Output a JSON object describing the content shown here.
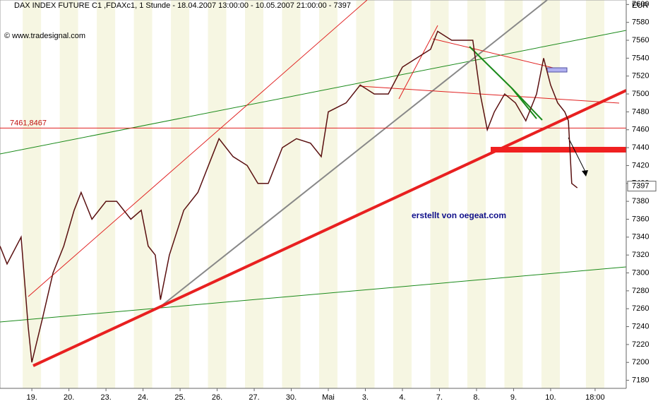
{
  "chart_data": {
    "type": "line",
    "title": "DAX INDEX FUTURE C1 ,FDAXc1, 1 Stunde - 18.04.2007 13:00:00 - 10.05.2007 21:00:00 - 7397",
    "source": "© www.tradesignal.com",
    "annotation": "erstellt von oegeat.com",
    "y_axis_label": "EUR",
    "hline": {
      "value": 7461.8467,
      "label": "7461,8467"
    },
    "last_value": 7397,
    "xlim": [
      -0.86,
      16.04
    ],
    "xticks": [
      {
        "value": 0,
        "label": "19."
      },
      {
        "value": 1,
        "label": "20."
      },
      {
        "value": 2,
        "label": "23."
      },
      {
        "value": 3,
        "label": "24."
      },
      {
        "value": 4,
        "label": "25."
      },
      {
        "value": 5,
        "label": "26."
      },
      {
        "value": 6,
        "label": "27."
      },
      {
        "value": 7,
        "label": "30."
      },
      {
        "value": 8,
        "label": "Mai"
      },
      {
        "value": 9,
        "label": "3."
      },
      {
        "value": 10,
        "label": "4."
      },
      {
        "value": 11,
        "label": "7."
      },
      {
        "value": 12,
        "label": "8."
      },
      {
        "value": 13,
        "label": "9."
      },
      {
        "value": 14,
        "label": "10."
      },
      {
        "value": 15.2,
        "label": "18:00"
      }
    ],
    "ylim": [
      7171,
      7605
    ],
    "yticks": [
      7180,
      7200,
      7220,
      7240,
      7260,
      7280,
      7300,
      7320,
      7340,
      7360,
      7380,
      7400,
      7420,
      7440,
      7460,
      7480,
      7500,
      7520,
      7540,
      7560,
      7580,
      7600
    ],
    "x": [
      -0.86,
      -0.67,
      -0.29,
      -0.1,
      0,
      0.29,
      0.57,
      0.86,
      1.14,
      1.33,
      1.62,
      2,
      2.29,
      2.67,
      2.95,
      3.14,
      3.33,
      3.47,
      3.71,
      4.1,
      4.48,
      4.86,
      5.05,
      5.43,
      5.81,
      6.1,
      6.38,
      6.76,
      7.14,
      7.52,
      7.81,
      8,
      8.48,
      8.86,
      9.24,
      9.62,
      10,
      10.38,
      10.76,
      10.95,
      11.33,
      11.71,
      11.9,
      12.1,
      12.29,
      12.48,
      12.76,
      13.05,
      13.33,
      13.62,
      13.81,
      14,
      14.19,
      14.38,
      14.48,
      14.57,
      14.72
    ],
    "series": [
      {
        "color": "#5a1010",
        "values": [
          7330,
          7310,
          7340,
          7240,
          7200,
          7250,
          7300,
          7330,
          7370,
          7390,
          7360,
          7380,
          7380,
          7360,
          7370,
          7330,
          7320,
          7270,
          7320,
          7370,
          7390,
          7430,
          7450,
          7430,
          7420,
          7400,
          7400,
          7440,
          7450,
          7445,
          7430,
          7480,
          7490,
          7510,
          7500,
          7500,
          7530,
          7540,
          7550,
          7570,
          7560,
          7560,
          7560,
          7500,
          7460,
          7480,
          7500,
          7490,
          7470,
          7500,
          7540,
          7510,
          7490,
          7480,
          7470,
          7400,
          7395
        ]
      }
    ]
  }
}
